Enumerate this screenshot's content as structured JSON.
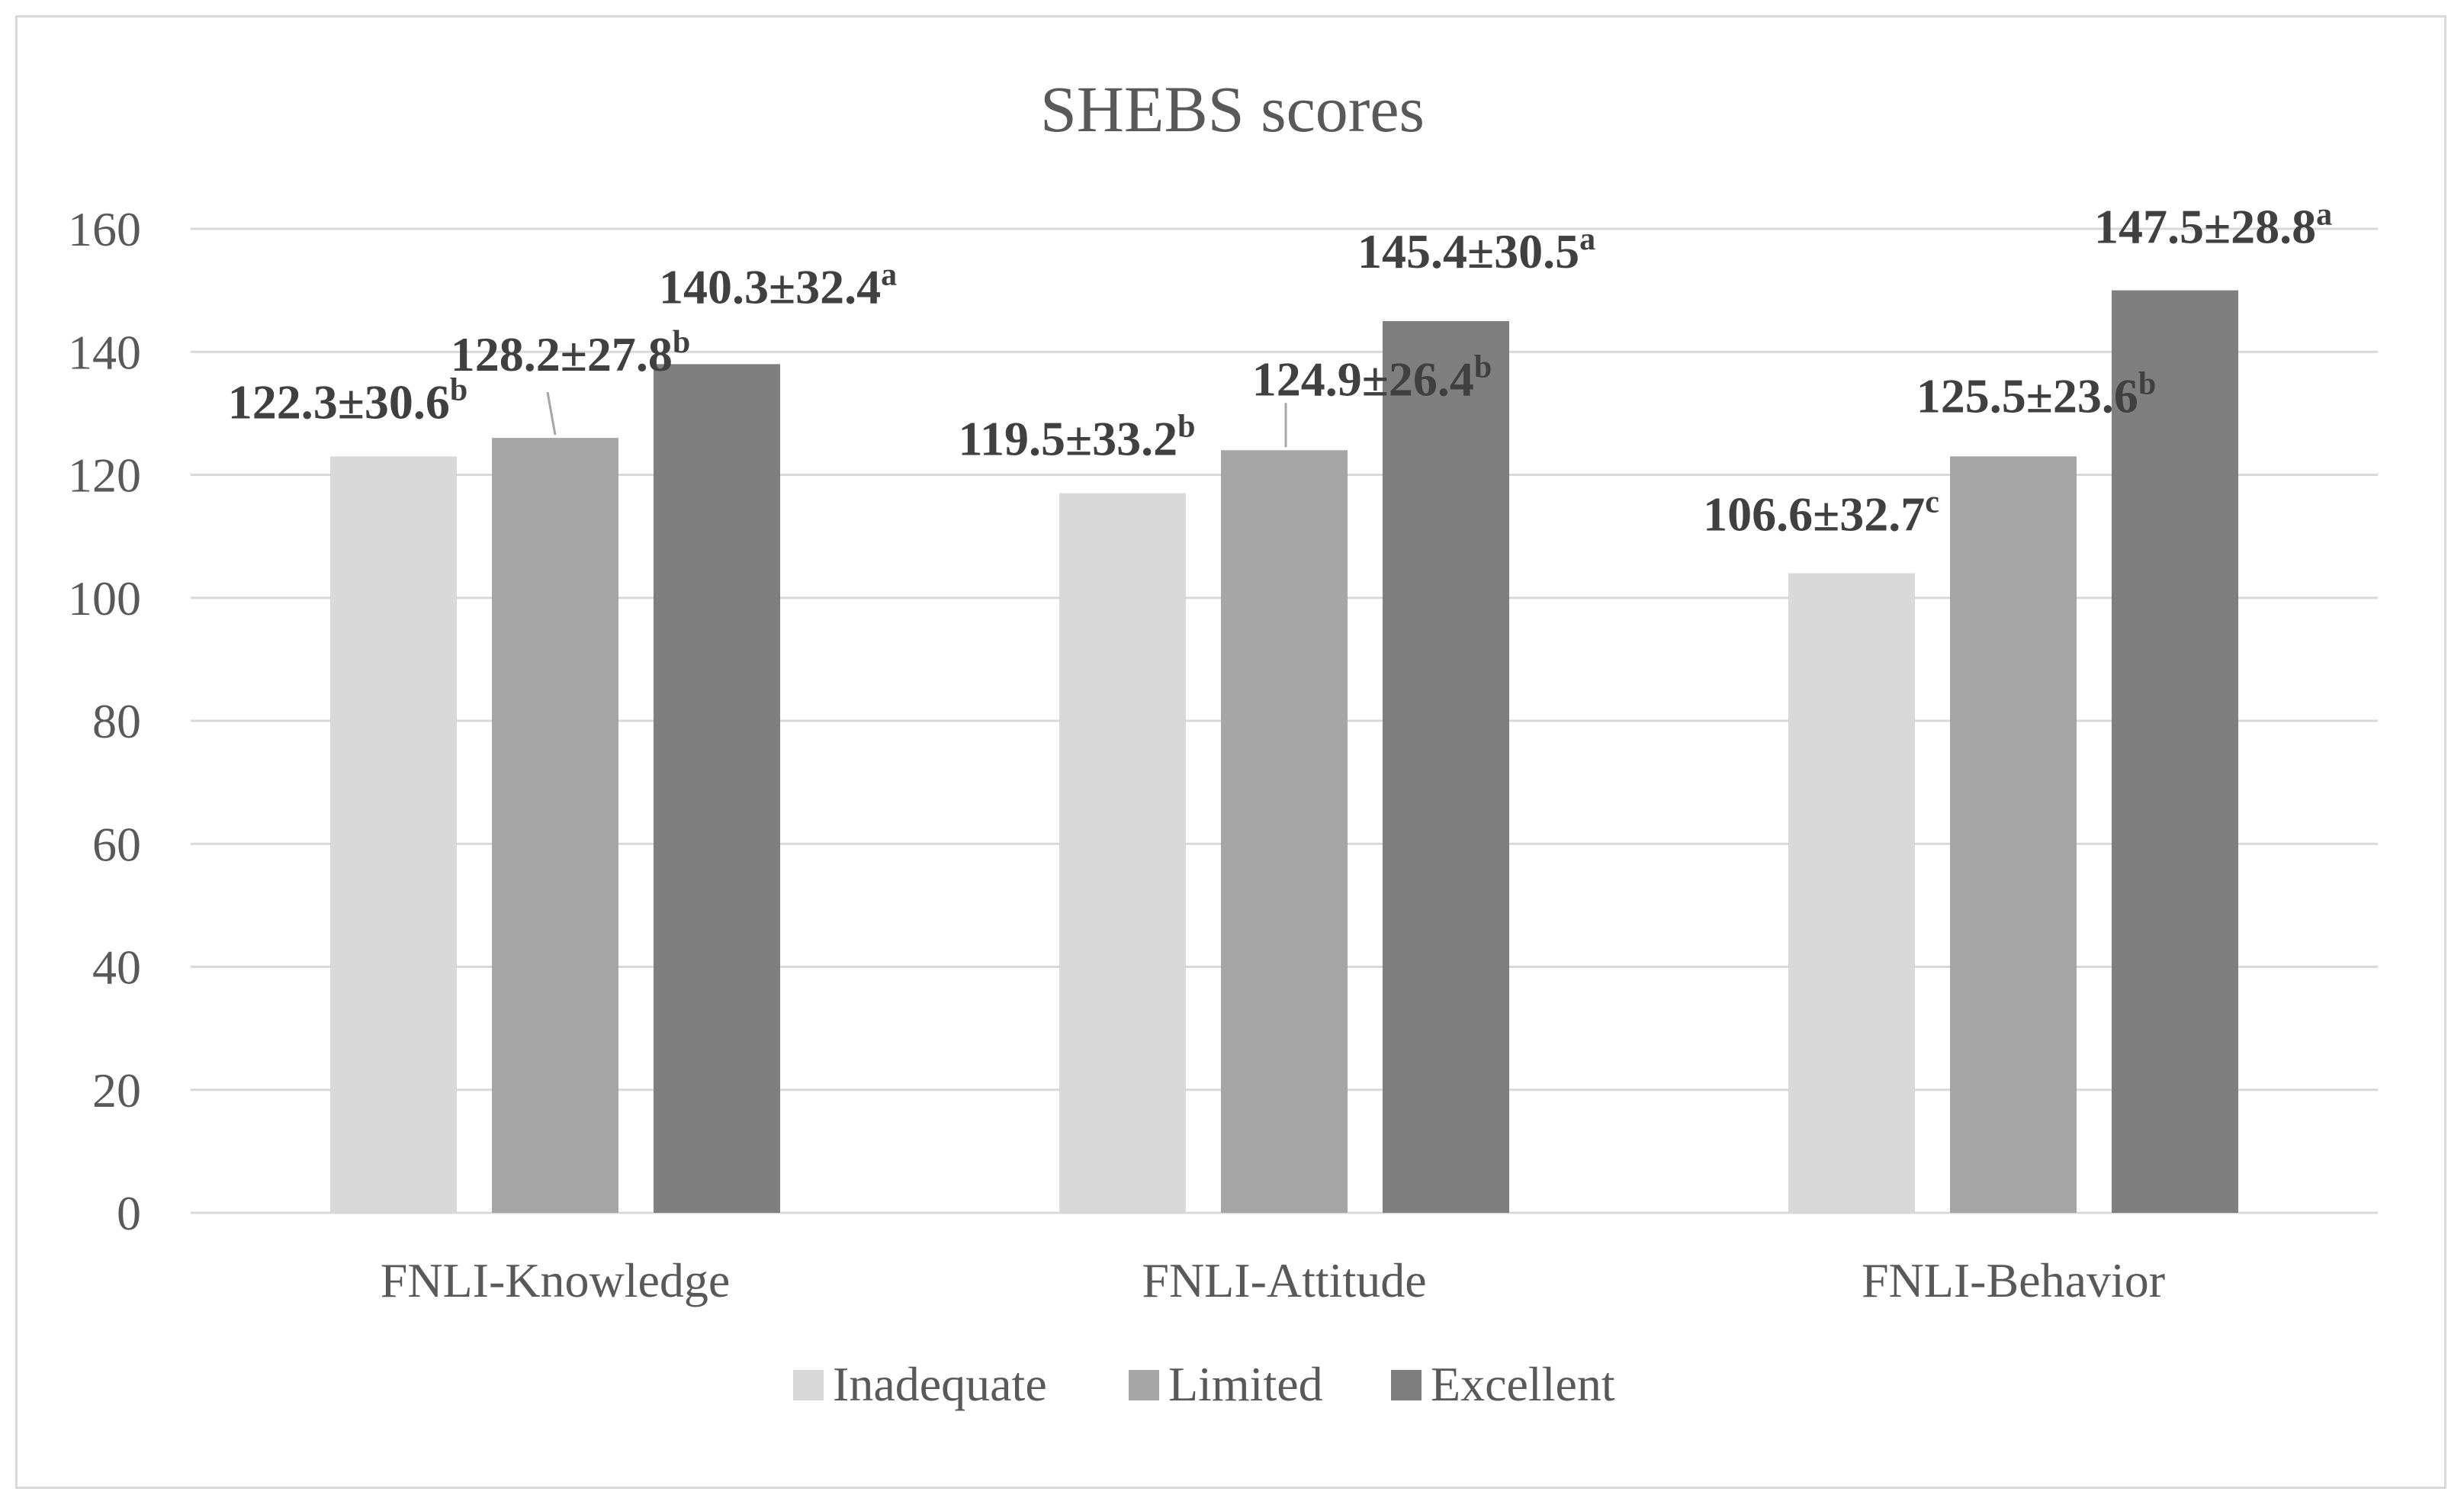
{
  "chart_data": {
    "type": "bar",
    "title": "SHEBS scores",
    "categories": [
      "FNLI-Knowledge",
      "FNLI-Attitude",
      "FNLI-Behavior"
    ],
    "series": [
      {
        "name": "Inadequate",
        "color": "#d9d9d9",
        "values": [
          123,
          117,
          104
        ],
        "labels": [
          {
            "text": "122.3±30.6",
            "sup": "b"
          },
          {
            "text": "119.5±33.2",
            "sup": "b"
          },
          {
            "text": "106.6±32.7",
            "sup": "c"
          }
        ]
      },
      {
        "name": "Limited",
        "color": "#a6a6a6",
        "values": [
          126,
          124,
          123
        ],
        "labels": [
          {
            "text": "128.2±27.8",
            "sup": "b"
          },
          {
            "text": "124.9±26.4",
            "sup": "b"
          },
          {
            "text": "125.5±23.6",
            "sup": "b"
          }
        ]
      },
      {
        "name": "Excellent",
        "color": "#7f7f7f",
        "values": [
          138,
          145,
          150
        ],
        "labels": [
          {
            "text": "140.3±32.4",
            "sup": "a"
          },
          {
            "text": "145.4±30.5",
            "sup": "a"
          },
          {
            "text": "147.5±28.8",
            "sup": "a"
          }
        ]
      }
    ],
    "ylim": [
      0,
      160
    ],
    "yticks": [
      0,
      20,
      40,
      60,
      80,
      100,
      120,
      140,
      160
    ],
    "grid": true,
    "legend": "bottom",
    "xlabel": "",
    "ylabel": ""
  }
}
